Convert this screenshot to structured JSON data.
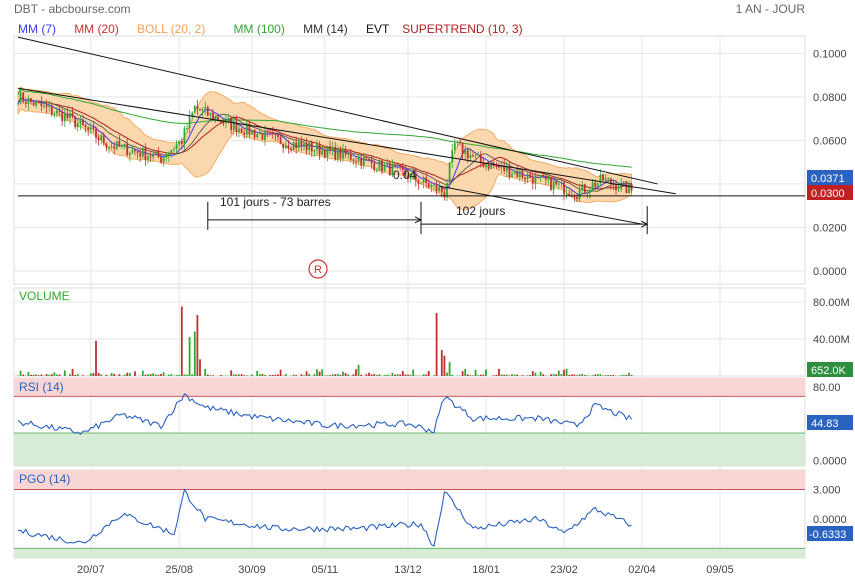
{
  "header": {
    "left": "DBT - abcbourse.com",
    "right": "1 AN - JOUR"
  },
  "legend": [
    {
      "label": "MM (7)",
      "color": "#3a3af0"
    },
    {
      "label": "MM (20)",
      "color": "#d03030"
    },
    {
      "label": "BOLL (20, 2)",
      "color": "#f0a050"
    },
    {
      "label": "MM (100)",
      "color": "#30a830"
    },
    {
      "label": "MM (14)",
      "color": "#333333"
    },
    {
      "label": "EVT",
      "color": "#111111"
    },
    {
      "label": "SUPERTREND (10, 3)",
      "color": "#b02020"
    }
  ],
  "colors": {
    "candle_up": "#30a830",
    "candle_down": "#c03030",
    "boll_fill": "#fbd7ae",
    "boll_line": "#f0a050",
    "indicator_line": "#2a62c0",
    "zone_high": "#f8d6d6",
    "zone_low": "#d6ecd6",
    "grid": "#e6e6e6",
    "badge_blue": "#2a62c0",
    "badge_red": "#c02020",
    "volume_bar": "#c03030"
  },
  "annotations": {
    "value_label": "0.04",
    "span1": "101 jours - 73 barres",
    "span2": "102 jours",
    "marker": "R"
  },
  "chart_data": [
    {
      "type": "candlestick",
      "title": "",
      "y_ticks": [
        "0.1000",
        "0.0800",
        "0.0600",
        "0.0400",
        "0.0200",
        "0.0000"
      ],
      "ylim": [
        -0.006,
        0.108
      ],
      "x_ticks": [
        "20/07",
        "25/08",
        "30/09",
        "05/11",
        "13/12",
        "18/01",
        "23/02",
        "02/04",
        "09/05"
      ],
      "last_value": "0.0371",
      "supertrend_value": "0.0300",
      "close_anchors": [
        {
          "day": 0,
          "value": 0.08
        },
        {
          "day": 20,
          "value": 0.07
        },
        {
          "day": 35,
          "value": 0.058
        },
        {
          "day": 55,
          "value": 0.052
        },
        {
          "day": 63,
          "value": 0.06
        },
        {
          "day": 68,
          "value": 0.075
        },
        {
          "day": 80,
          "value": 0.068
        },
        {
          "day": 100,
          "value": 0.06
        },
        {
          "day": 130,
          "value": 0.052
        },
        {
          "day": 150,
          "value": 0.044
        },
        {
          "day": 164,
          "value": 0.036
        },
        {
          "day": 168,
          "value": 0.058
        },
        {
          "day": 178,
          "value": 0.05
        },
        {
          "day": 200,
          "value": 0.042
        },
        {
          "day": 215,
          "value": 0.036
        },
        {
          "day": 225,
          "value": 0.042
        },
        {
          "day": 236,
          "value": 0.037
        }
      ],
      "trend_lines": [
        {
          "x": [
            0,
            246
          ],
          "y": [
            0.1075,
            0.04
          ]
        },
        {
          "x": [
            0,
            253
          ],
          "y": [
            0.084,
            0.0355
          ]
        },
        {
          "x": [
            162,
            240
          ],
          "y": [
            0.039,
            0.0215
          ]
        }
      ],
      "horizontal_line": 0.0345,
      "spans": [
        {
          "x": [
            73,
            155
          ],
          "y": 0.0235
        },
        {
          "x": [
            155,
            242
          ],
          "y": 0.0215
        }
      ]
    },
    {
      "type": "bar",
      "title": "VOLUME",
      "y_ticks": [
        "80.00M",
        "40.00M"
      ],
      "ylim": [
        0,
        95
      ],
      "last_value": "652.0K",
      "spikes": [
        {
          "day": 30,
          "value": 38
        },
        {
          "day": 63,
          "value": 75
        },
        {
          "day": 66,
          "value": 42
        },
        {
          "day": 68,
          "value": 48
        },
        {
          "day": 69,
          "value": 66
        },
        {
          "day": 70,
          "value": 18
        },
        {
          "day": 131,
          "value": 12
        },
        {
          "day": 161,
          "value": 68
        },
        {
          "day": 163,
          "value": 28
        },
        {
          "day": 164,
          "value": 22
        },
        {
          "day": 166,
          "value": 15
        }
      ]
    },
    {
      "type": "line",
      "title": "RSI (14)",
      "y_ticks": [
        "80.00",
        "40.00",
        "0.0000"
      ],
      "ylim": [
        -6,
        90
      ],
      "zones": {
        "high": 70,
        "low": 30
      },
      "last_value": "44.83",
      "anchors": [
        {
          "day": 0,
          "value": 42
        },
        {
          "day": 25,
          "value": 30
        },
        {
          "day": 40,
          "value": 50
        },
        {
          "day": 55,
          "value": 38
        },
        {
          "day": 64,
          "value": 72
        },
        {
          "day": 72,
          "value": 58
        },
        {
          "day": 90,
          "value": 48
        },
        {
          "day": 120,
          "value": 38
        },
        {
          "day": 150,
          "value": 40
        },
        {
          "day": 160,
          "value": 32
        },
        {
          "day": 164,
          "value": 70
        },
        {
          "day": 175,
          "value": 46
        },
        {
          "day": 200,
          "value": 46
        },
        {
          "day": 215,
          "value": 38
        },
        {
          "day": 222,
          "value": 60
        },
        {
          "day": 236,
          "value": 44.83
        }
      ]
    },
    {
      "type": "line",
      "title": "PGO (14)",
      "y_ticks": [
        "3.000",
        "0.0000"
      ],
      "ylim": [
        -4.0,
        5.0
      ],
      "zones": {
        "high": 3.0,
        "low": -3.0
      },
      "last_value": "-0.6333",
      "anchors": [
        {
          "day": 0,
          "value": -1.2
        },
        {
          "day": 25,
          "value": -2.5
        },
        {
          "day": 40,
          "value": 0.5
        },
        {
          "day": 60,
          "value": -1.5
        },
        {
          "day": 64,
          "value": 2.8
        },
        {
          "day": 72,
          "value": 0.0
        },
        {
          "day": 100,
          "value": -1.0
        },
        {
          "day": 130,
          "value": -1.0
        },
        {
          "day": 155,
          "value": -0.5
        },
        {
          "day": 160,
          "value": -2.8
        },
        {
          "day": 164,
          "value": 2.8
        },
        {
          "day": 175,
          "value": -1.0
        },
        {
          "day": 200,
          "value": 0.0
        },
        {
          "day": 210,
          "value": -1.5
        },
        {
          "day": 222,
          "value": 1.0
        },
        {
          "day": 236,
          "value": -0.6333
        }
      ]
    }
  ]
}
